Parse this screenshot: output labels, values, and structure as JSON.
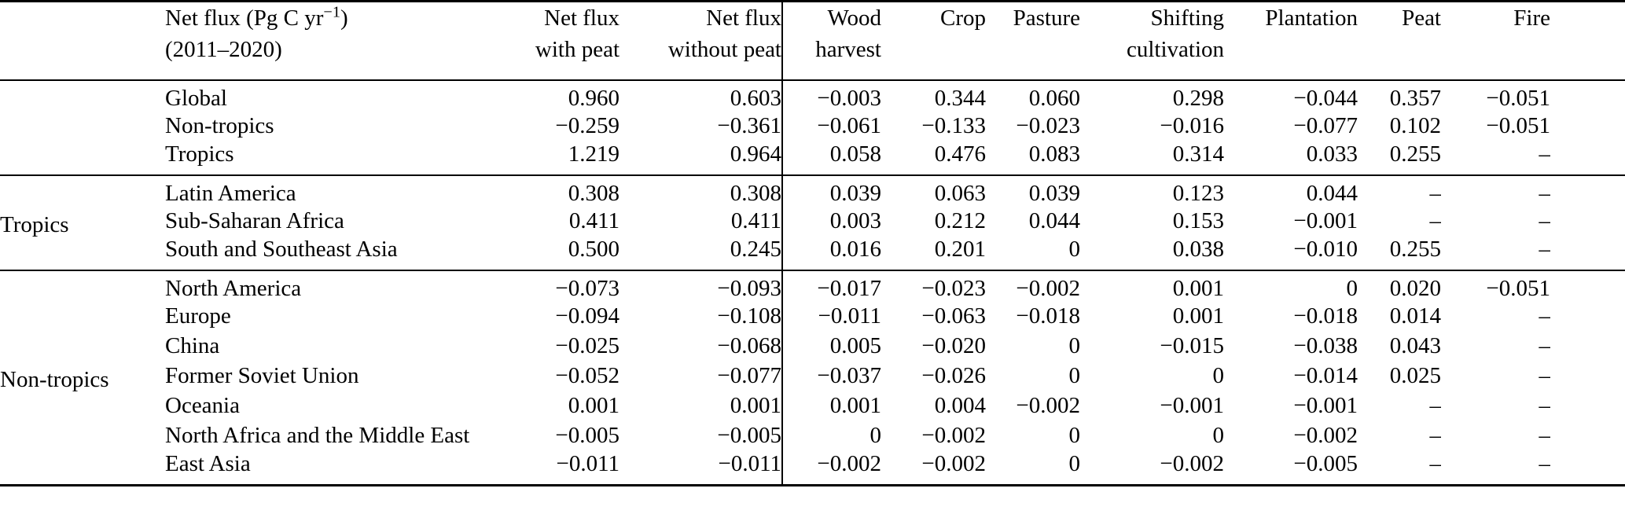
{
  "table": {
    "header": {
      "region": {
        "prefix": "Net flux (Pg C yr",
        "sup": "−1",
        "suffix": ")",
        "line2": "(2011–2020)"
      },
      "columns": [
        {
          "line1": "Net flux",
          "line2": "with peat"
        },
        {
          "line1": "Net flux",
          "line2": "without peat"
        },
        {
          "line1": "Wood",
          "line2": "harvest"
        },
        {
          "line1": "Crop",
          "line2": ""
        },
        {
          "line1": "Pasture",
          "line2": ""
        },
        {
          "line1": "Shifting",
          "line2": "cultivation"
        },
        {
          "line1": "Plantation",
          "line2": ""
        },
        {
          "line1": "Peat",
          "line2": ""
        },
        {
          "line1": "Fire",
          "line2": ""
        }
      ]
    },
    "blocks": [
      {
        "group": "",
        "rows": [
          {
            "region": "Global",
            "values": [
              "0.960",
              "0.603",
              "−0.003",
              "0.344",
              "0.060",
              "0.298",
              "−0.044",
              "0.357",
              "−0.051"
            ]
          },
          {
            "region": "Non-tropics",
            "values": [
              "−0.259",
              "−0.361",
              "−0.061",
              "−0.133",
              "−0.023",
              "−0.016",
              "−0.077",
              "0.102",
              "−0.051"
            ]
          },
          {
            "region": "Tropics",
            "values": [
              "1.219",
              "0.964",
              "0.058",
              "0.476",
              "0.083",
              "0.314",
              "0.033",
              "0.255",
              "–"
            ]
          }
        ]
      },
      {
        "group": "Tropics",
        "rows": [
          {
            "region": "Latin America",
            "values": [
              "0.308",
              "0.308",
              "0.039",
              "0.063",
              "0.039",
              "0.123",
              "0.044",
              "–",
              "–"
            ]
          },
          {
            "region": "Sub-Saharan Africa",
            "values": [
              "0.411",
              "0.411",
              "0.003",
              "0.212",
              "0.044",
              "0.153",
              "−0.001",
              "–",
              "–"
            ]
          },
          {
            "region": "South and Southeast Asia",
            "values": [
              "0.500",
              "0.245",
              "0.016",
              "0.201",
              "0",
              "0.038",
              "−0.010",
              "0.255",
              "–"
            ]
          }
        ]
      },
      {
        "group": "Non-tropics",
        "rows": [
          {
            "region": "North America",
            "values": [
              "−0.073",
              "−0.093",
              "−0.017",
              "−0.023",
              "−0.002",
              "0.001",
              "0",
              "0.020",
              "−0.051"
            ]
          },
          {
            "region": "Europe",
            "values": [
              "−0.094",
              "−0.108",
              "−0.011",
              "−0.063",
              "−0.018",
              "0.001",
              "−0.018",
              "0.014",
              "–"
            ]
          },
          {
            "region": "China",
            "values": [
              "−0.025",
              "−0.068",
              "0.005",
              "−0.020",
              "0",
              "−0.015",
              "−0.038",
              "0.043",
              "–"
            ]
          },
          {
            "region": "Former Soviet Union",
            "values": [
              "−0.052",
              "−0.077",
              "−0.037",
              "−0.026",
              "0",
              "0",
              "−0.014",
              "0.025",
              "–"
            ]
          },
          {
            "region": "Oceania",
            "values": [
              "0.001",
              "0.001",
              "0.001",
              "0.004",
              "−0.002",
              "−0.001",
              "−0.001",
              "–",
              "–"
            ]
          },
          {
            "region": "North Africa and the Middle East",
            "values": [
              "−0.005",
              "−0.005",
              "0",
              "−0.002",
              "0",
              "0",
              "−0.002",
              "–",
              "–"
            ]
          },
          {
            "region": "East Asia",
            "values": [
              "−0.011",
              "−0.011",
              "−0.002",
              "−0.002",
              "0",
              "−0.002",
              "−0.005",
              "–",
              "–"
            ]
          }
        ]
      }
    ]
  }
}
